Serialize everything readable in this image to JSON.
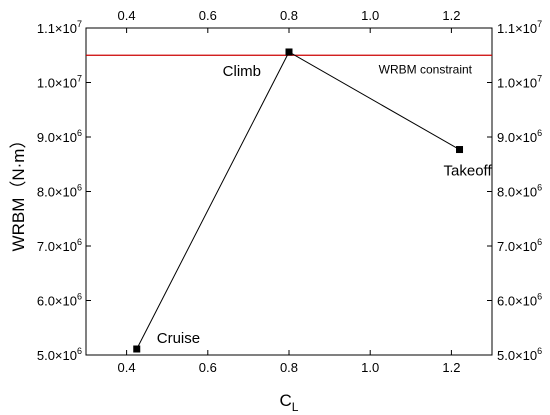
{
  "chart_data": {
    "type": "line",
    "xlabel": "C",
    "xlabel_subscript": "L",
    "ylabel": "WRBM（N·m）",
    "xlim": [
      0.3,
      1.3
    ],
    "ylim": [
      5000000,
      11000000
    ],
    "x_ticks": [
      0.4,
      0.6,
      0.8,
      1.0,
      1.2
    ],
    "x_tick_labels": [
      "0.4",
      "0.6",
      "0.8",
      "1.0",
      "1.2"
    ],
    "y_ticks": [
      5000000,
      6000000,
      7000000,
      8000000,
      9000000,
      10000000,
      11000000
    ],
    "y_tick_labels": [
      {
        "mantissa": "5.0×10",
        "exponent": "6"
      },
      {
        "mantissa": "6.0×10",
        "exponent": "6"
      },
      {
        "mantissa": "7.0×10",
        "exponent": "6"
      },
      {
        "mantissa": "8.0×10",
        "exponent": "6"
      },
      {
        "mantissa": "9.0×10",
        "exponent": "6"
      },
      {
        "mantissa": "1.0×10",
        "exponent": "7"
      },
      {
        "mantissa": "1.1×10",
        "exponent": "7"
      }
    ],
    "series": [
      {
        "points": [
          {
            "label": "Cruise",
            "x": 0.425,
            "y": 5110000
          },
          {
            "label": "Climb",
            "x": 0.8,
            "y": 10560000
          },
          {
            "label": "Takeoff",
            "x": 1.22,
            "y": 8770000
          }
        ],
        "color": "#000000",
        "marker": "square"
      }
    ],
    "constraint": {
      "label": "WRBM constraint",
      "y": 10500000,
      "color": "#cc0000"
    },
    "grid": false,
    "mirror_axes": true
  }
}
